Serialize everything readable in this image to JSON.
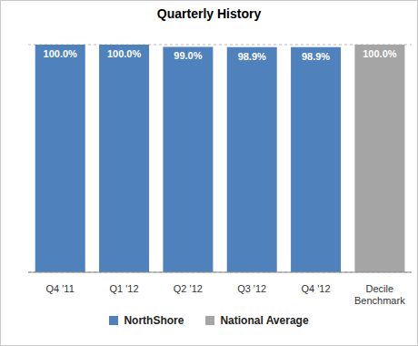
{
  "chart_data": {
    "type": "bar",
    "title": "Quarterly History",
    "categories": [
      "Q4 '11",
      "Q1 '12",
      "Q2 '12",
      "Q3 '12",
      "Q4 '12",
      "Decile Benchmark"
    ],
    "series": [
      {
        "name": "NorthShore",
        "color": "#4f81bd",
        "values": [
          100.0,
          100.0,
          99.0,
          98.9,
          98.9,
          null
        ],
        "value_labels": [
          "100.0%",
          "100.0%",
          "99.0%",
          "98.9%",
          "98.9%",
          null
        ]
      },
      {
        "name": "National Average",
        "color": "#a5a5a5",
        "values": [
          null,
          null,
          null,
          null,
          null,
          100.0
        ],
        "value_labels": [
          null,
          null,
          null,
          null,
          null,
          "100.0%"
        ]
      }
    ],
    "ylim": [
      0,
      100
    ],
    "yticks": [
      0,
      10,
      20,
      30,
      40,
      50,
      60,
      70,
      80,
      90,
      100
    ],
    "grid": true,
    "data_labels": true,
    "tick_labels": "x",
    "legend": "bottom"
  }
}
